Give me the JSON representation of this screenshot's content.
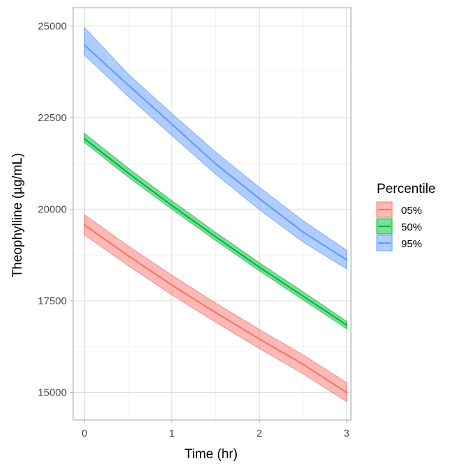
{
  "chart_data": {
    "type": "line",
    "xlabel": "Time (hr)",
    "ylabel": "Theophylline (µg/mL)",
    "xlim": [
      -0.13,
      3.05
    ],
    "ylim": [
      14250,
      25500
    ],
    "x_ticks": [
      0,
      1,
      2,
      3
    ],
    "x_tick_labels": [
      "0",
      "1",
      "2",
      "3"
    ],
    "y_ticks": [
      15000,
      17500,
      20000,
      22500,
      25000
    ],
    "y_tick_labels": [
      "15000",
      "17500",
      "20000",
      "22500",
      "25000"
    ],
    "grid": true,
    "legend": {
      "title": "Percentile",
      "placement": "right",
      "entries": [
        "05%",
        "50%",
        "95%"
      ]
    },
    "x": [
      0,
      0.5,
      1,
      1.5,
      2,
      2.5,
      3
    ],
    "series": [
      {
        "name": "05%",
        "color": "#F8766D",
        "values": [
          19570,
          18730,
          17930,
          17180,
          16460,
          15770,
          15000
        ],
        "lower": [
          19300,
          18460,
          17660,
          16920,
          16200,
          15510,
          14750
        ],
        "upper": [
          19850,
          19000,
          18200,
          17440,
          16720,
          16030,
          15270
        ]
      },
      {
        "name": "50%",
        "color": "#00BA38",
        "values": [
          21920,
          20990,
          20100,
          19250,
          18420,
          17630,
          16840
        ],
        "lower": [
          21820,
          20880,
          20000,
          19150,
          18320,
          17530,
          16740
        ],
        "upper": [
          22070,
          21120,
          20230,
          19370,
          18540,
          17750,
          16940
        ]
      },
      {
        "name": "95%",
        "color": "#619CFF",
        "values": [
          24480,
          23390,
          22320,
          21240,
          20290,
          19380,
          18620
        ],
        "lower": [
          24200,
          23080,
          22010,
          20960,
          19990,
          19110,
          18370
        ],
        "upper": [
          24960,
          23690,
          22610,
          21560,
          20600,
          19690,
          18880
        ]
      }
    ]
  }
}
